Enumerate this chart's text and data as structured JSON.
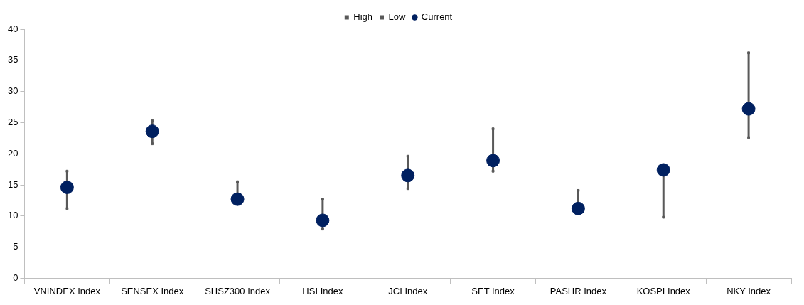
{
  "chart_data": {
    "type": "scatter",
    "categories": [
      "VNINDEX Index",
      "SENSEX Index",
      "SHSZ300 Index",
      "HSI Index",
      "JCI Index",
      "SET Index",
      "PASHR Index",
      "KOSPI Index",
      "NKY Index"
    ],
    "series": [
      {
        "name": "High",
        "marker": "square",
        "color": "#595959",
        "values": [
          17.2,
          25.3,
          15.5,
          12.7,
          19.6,
          24.0,
          14.1,
          null,
          36.2
        ]
      },
      {
        "name": "Low",
        "marker": "square",
        "color": "#595959",
        "values": [
          11.2,
          21.6,
          null,
          7.9,
          14.4,
          17.2,
          null,
          9.8,
          22.6
        ]
      },
      {
        "name": "Current",
        "color": "#002060",
        "values": [
          14.6,
          23.6,
          12.7,
          9.3,
          16.5,
          18.9,
          11.2,
          17.4,
          27.2
        ]
      }
    ],
    "ylim": [
      0,
      40
    ],
    "yticks": [
      0,
      5,
      10,
      15,
      20,
      25,
      30,
      35,
      40
    ],
    "grid": false,
    "legend": "top",
    "marker": "circle"
  }
}
